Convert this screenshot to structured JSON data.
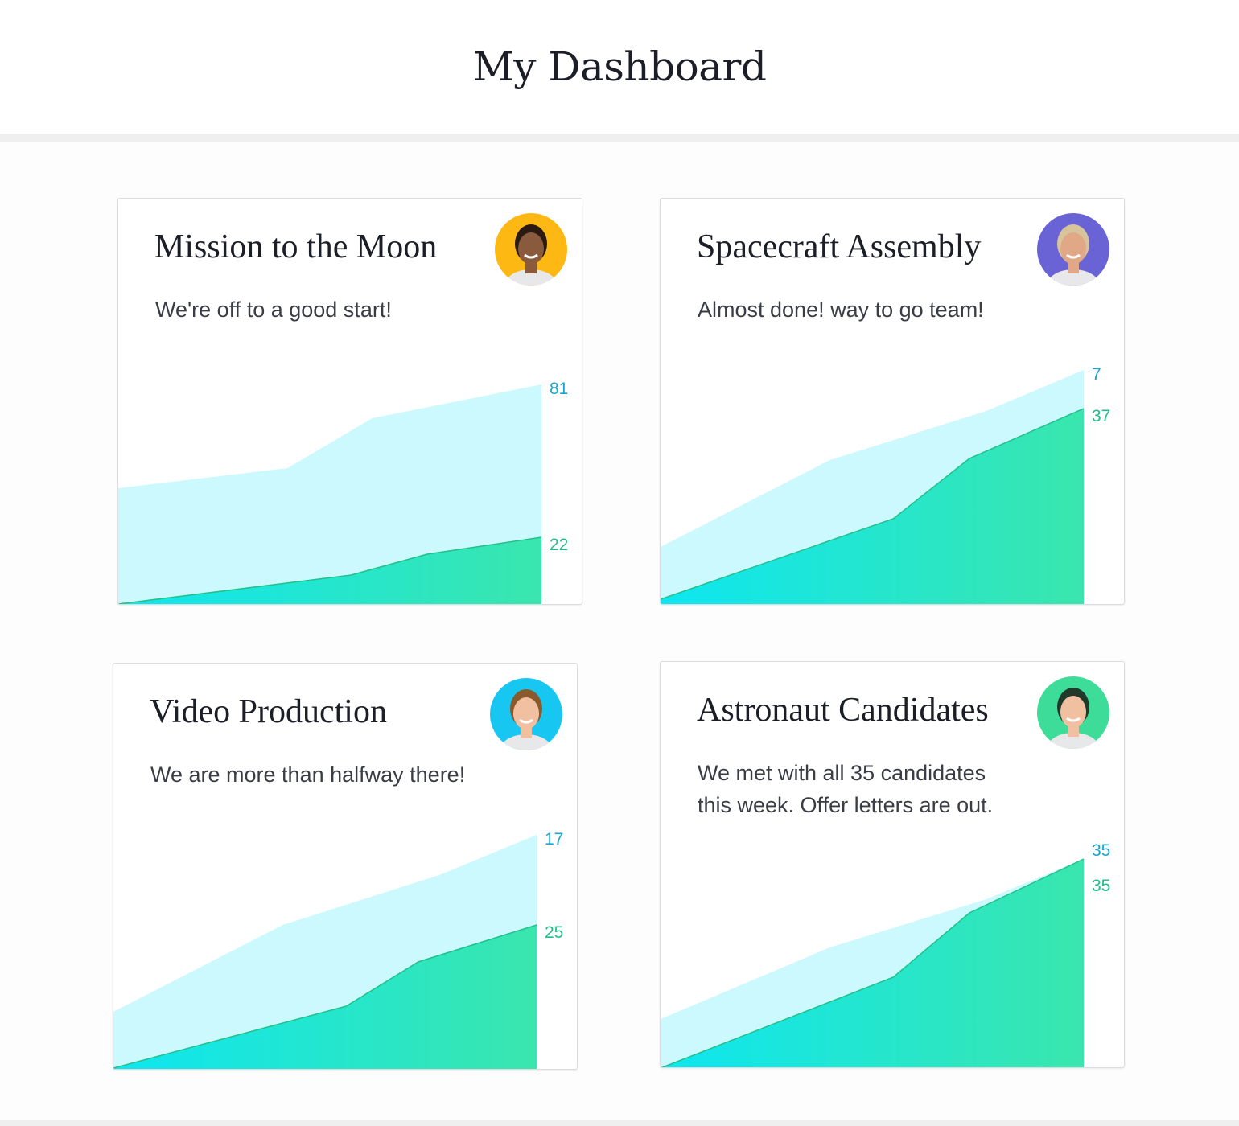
{
  "header": {
    "title": "My Dashboard"
  },
  "colors": {
    "top_fill": "#ccf9fd",
    "bottom_start": "#0de6f0",
    "bottom_end": "#3ae6ad",
    "top_label": "#16a6d0",
    "bottom_label": "#20bf88"
  },
  "cards": [
    {
      "title": "Mission to the Moon",
      "description": "We're off to a good start!",
      "avatar": {
        "icon": "person-avatar",
        "bg": "#fdb813",
        "skin": "#8a5a3c",
        "hair": "#2a1a12"
      },
      "chart_data": {
        "type": "area",
        "x": [
          0,
          40,
          60,
          100
        ],
        "series": [
          {
            "values": [
              145,
              170,
              232,
              274
            ],
            "label": "81"
          },
          {
            "x": [
              0,
              55,
              73,
              100
            ],
            "values": [
              1,
              37,
              63,
              84
            ],
            "label": "22"
          }
        ]
      }
    },
    {
      "title": "Spacecraft Assembly",
      "description": "Almost done! way to go team!",
      "avatar": {
        "icon": "person-avatar",
        "bg": "#6a63d6",
        "skin": "#e0a886",
        "hair": "#d8c49a"
      },
      "chart_data": {
        "type": "area",
        "x": [
          0,
          40,
          77,
          100
        ],
        "series": [
          {
            "values": [
              72,
              180,
              241,
              292
            ],
            "label": "7"
          },
          {
            "x": [
              0,
              55,
              73,
              100
            ],
            "values": [
              7,
              107,
              182,
              244
            ],
            "label": "37"
          }
        ]
      }
    },
    {
      "title": "Video Production",
      "description": "We are more than halfway there!",
      "avatar": {
        "icon": "person-avatar",
        "bg": "#18c6f2",
        "skin": "#f0c0a0",
        "hair": "#8a5a2c"
      },
      "chart_data": {
        "type": "area",
        "x": [
          0,
          40,
          77,
          100
        ],
        "series": [
          {
            "values": [
              72,
              180,
              242,
              292
            ],
            "label": "17"
          },
          {
            "x": [
              0,
              55,
              72,
              100
            ],
            "values": [
              2,
              79,
              134,
              180
            ],
            "label": "25"
          }
        ]
      }
    },
    {
      "title": "Astronaut Candidates",
      "description": "We met with all 35 candidates this week. Offer letters are out.",
      "avatar": {
        "icon": "person-avatar",
        "bg": "#3ddc98",
        "skin": "#f0c0a0",
        "hair": "#1f3a2a"
      },
      "chart_data": {
        "type": "area",
        "x": [
          0,
          40,
          77,
          100
        ],
        "series": [
          {
            "values": [
              61,
              150,
              210,
              260
            ],
            "label": "35"
          },
          {
            "x": [
              0,
              55,
              73,
              100
            ],
            "values": [
              0,
              113,
              193,
              260
            ],
            "label": "35"
          }
        ]
      }
    }
  ]
}
